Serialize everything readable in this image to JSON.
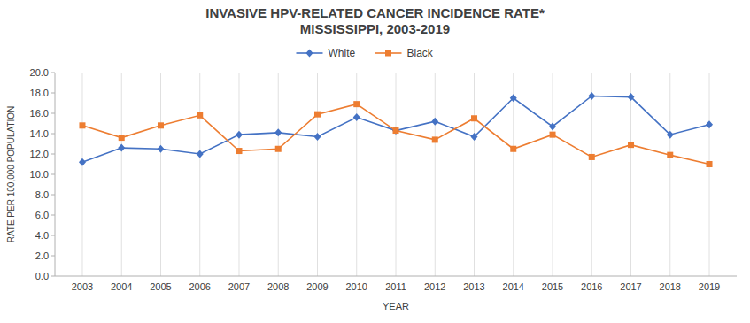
{
  "chart_data": {
    "type": "line",
    "title": "INVASIVE HPV-RELATED CANCER INCIDENCE RATE*",
    "subtitle": "MISSISSIPPI, 2003-2019",
    "x_label": "YEAR",
    "y_label": "RATE PER 100,000 POPULATION",
    "x": [
      2003,
      2004,
      2005,
      2006,
      2007,
      2008,
      2009,
      2010,
      2011,
      2012,
      2013,
      2014,
      2015,
      2016,
      2017,
      2018,
      2019
    ],
    "series": [
      {
        "name": "White",
        "color": "#4472C4",
        "marker": "diamond",
        "values": [
          11.2,
          12.6,
          12.5,
          12.0,
          13.9,
          14.1,
          13.7,
          15.6,
          14.3,
          15.2,
          13.7,
          17.5,
          14.7,
          17.7,
          17.6,
          13.9,
          14.9
        ]
      },
      {
        "name": "Black",
        "color": "#ED7D31",
        "marker": "square",
        "values": [
          14.8,
          13.6,
          14.8,
          15.8,
          12.3,
          12.5,
          15.9,
          16.9,
          14.3,
          13.4,
          15.5,
          12.5,
          13.9,
          11.7,
          12.9,
          11.9,
          11.0
        ]
      }
    ],
    "xlim": [
      2002.3,
      2019.7
    ],
    "xticks": [
      2003,
      2004,
      2005,
      2006,
      2007,
      2008,
      2009,
      2010,
      2011,
      2012,
      2013,
      2014,
      2015,
      2016,
      2017,
      2018,
      2019
    ],
    "ylim": [
      0,
      20.0
    ],
    "yticks": [
      {
        "value": 0.0,
        "label": "0.0"
      },
      {
        "value": 2.0,
        "label": "2.0"
      },
      {
        "value": 4.0,
        "label": "4.0"
      },
      {
        "value": 6.0,
        "label": "6.0"
      },
      {
        "value": 8.0,
        "label": "8.0"
      },
      {
        "value": 10.0,
        "label": "10.0"
      },
      {
        "value": 12.0,
        "label": "12.0"
      },
      {
        "value": 14.0,
        "label": "14.0"
      },
      {
        "value": 16.0,
        "label": "16.0"
      },
      {
        "value": 18.0,
        "label": "18.0"
      },
      {
        "value": 20.0,
        "label": "20.0"
      }
    ],
    "grid": "x",
    "legend": "top"
  }
}
